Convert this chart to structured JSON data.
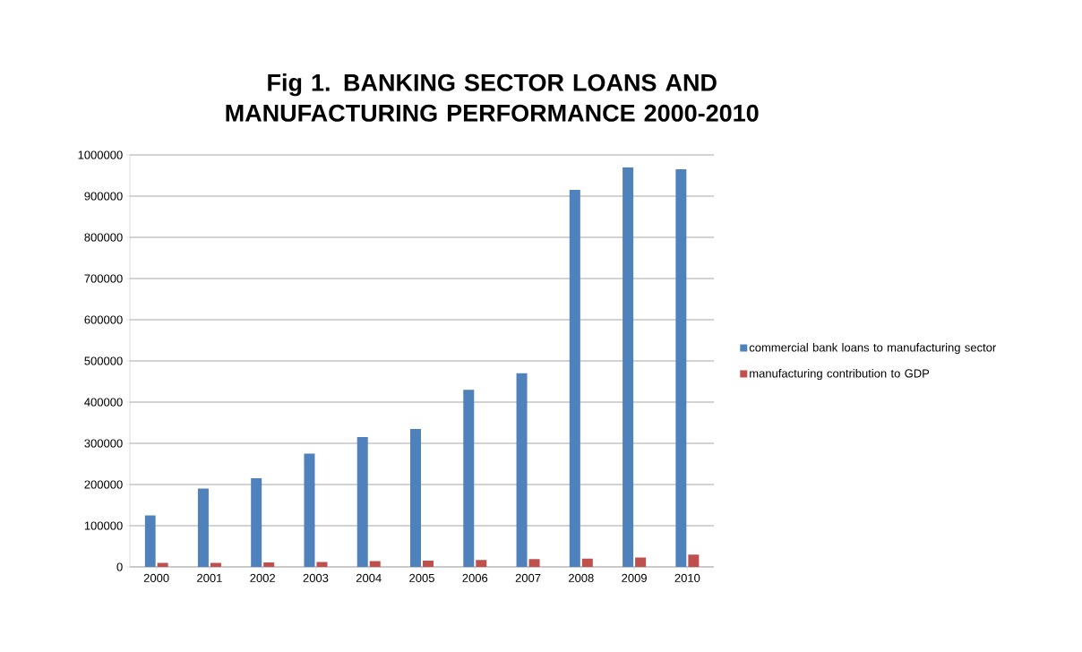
{
  "chart_data": {
    "type": "bar",
    "title": "Fig 1. BANKING SECTOR LOANS AND MANUFACTURING PERFORMANCE 2000-2010",
    "categories": [
      "2000",
      "2001",
      "2002",
      "2003",
      "2004",
      "2005",
      "2006",
      "2007",
      "2008",
      "2009",
      "2010"
    ],
    "series": [
      {
        "name": "commercial bank loans to manufacturing sector",
        "color": "#4f81bd",
        "values": [
          125000,
          190000,
          215000,
          275000,
          315000,
          335000,
          430000,
          470000,
          915000,
          970000,
          965000
        ]
      },
      {
        "name": "manufacturing contribution to GDP",
        "color": "#c0504d",
        "values": [
          10000,
          10000,
          11000,
          12000,
          14000,
          15000,
          17000,
          19000,
          20000,
          23000,
          30000
        ]
      }
    ],
    "ylim": [
      0,
      1000000
    ],
    "yticks": [
      0,
      100000,
      200000,
      300000,
      400000,
      500000,
      600000,
      700000,
      800000,
      900000,
      1000000
    ],
    "grid": "y",
    "legend": "right"
  }
}
